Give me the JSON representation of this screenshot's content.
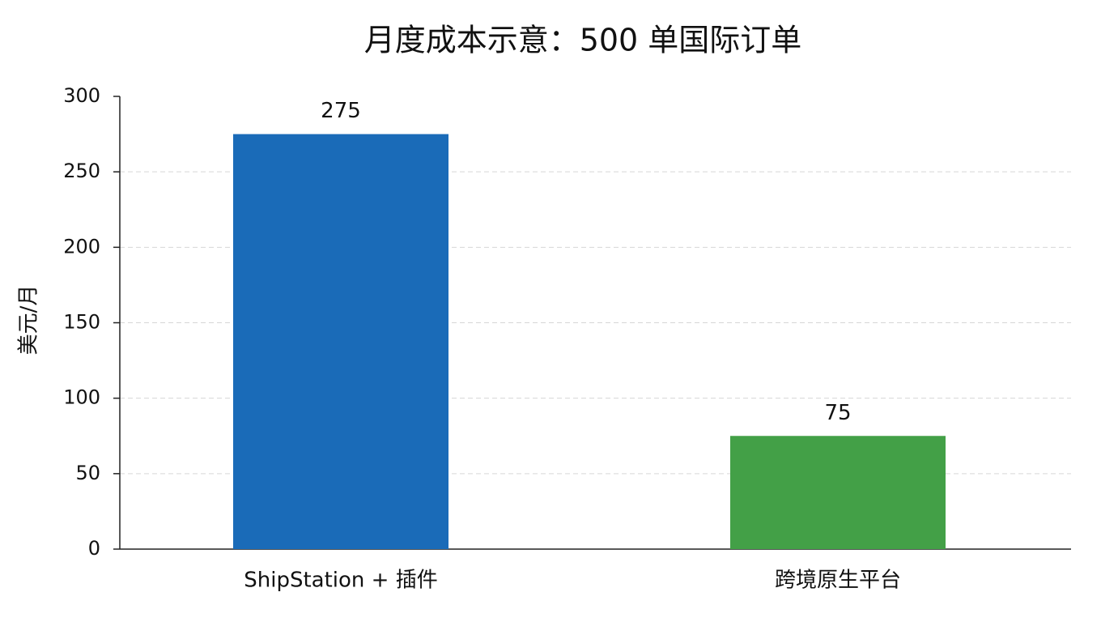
{
  "chart_data": {
    "type": "bar",
    "title": "月度成本示意：500 单国际订单",
    "y_label": "美元/月",
    "categories": [
      "ShipStation + 插件",
      "跨境原生平台"
    ],
    "values": [
      275,
      75
    ],
    "colors": [
      "#1a6bb8",
      "#43a047"
    ],
    "ylim": [
      0,
      300
    ],
    "yticks": [
      0,
      50,
      100,
      150,
      200,
      250,
      300
    ],
    "grid": true
  }
}
